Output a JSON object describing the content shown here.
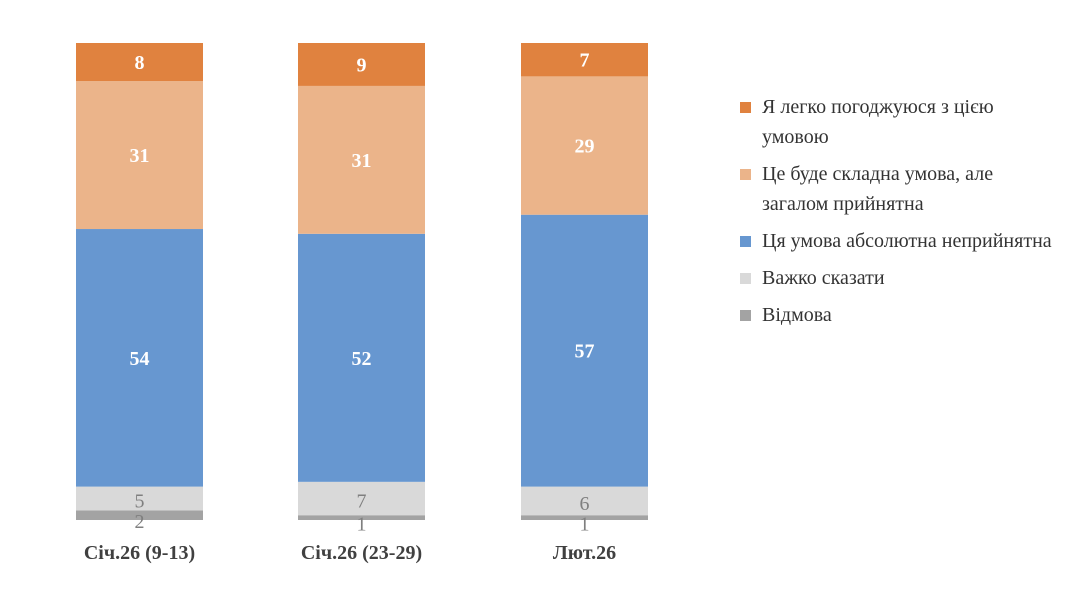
{
  "chart_data": {
    "type": "bar",
    "stacked": true,
    "categories": [
      "Січ.26 (9-13)",
      "Січ.26 (23-29)",
      "Лют.26"
    ],
    "ylim": [
      0,
      100
    ],
    "grid": false,
    "legend_position": "right",
    "series": [
      {
        "name": "Відмова",
        "values": [
          2,
          1,
          1
        ],
        "color": "#A3A3A3",
        "label_color": "#7f7f7f"
      },
      {
        "name": "Важко сказати",
        "values": [
          5,
          7,
          6
        ],
        "color": "#D9D9D9",
        "label_color": "#7f7f7f"
      },
      {
        "name": "Ця умова абсолютна неприйнятна",
        "values": [
          54,
          52,
          57
        ],
        "color": "#6797D0",
        "label_color": "#ffffff"
      },
      {
        "name": "Це буде складна умова, але загалом прийнятна",
        "values": [
          31,
          31,
          29
        ],
        "color": "#EBB48A",
        "label_color": "#ffffff"
      },
      {
        "name": "Я легко погоджуюся з цією умовою",
        "values": [
          8,
          9,
          7
        ],
        "color": "#E0823F",
        "label_color": "#ffffff"
      }
    ],
    "legend_order": [
      4,
      3,
      2,
      1,
      0
    ]
  }
}
